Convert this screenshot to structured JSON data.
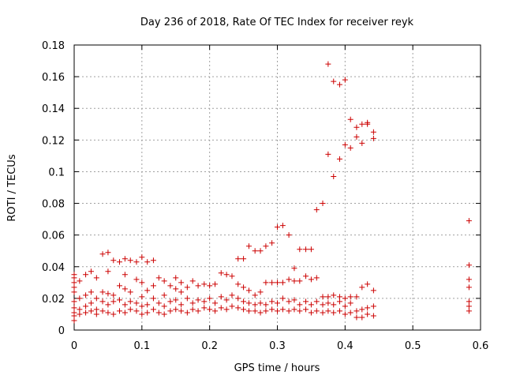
{
  "chart_data": {
    "type": "scatter",
    "title": "Day 236 of 2018, Rate Of TEC Index for receiver reyk",
    "xlabel": "GPS time / hours",
    "ylabel": "ROTI / TECUs",
    "xlim": [
      0,
      0.6
    ],
    "ylim": [
      0,
      0.18
    ],
    "grid": true,
    "marker": "+",
    "color": "#cc0000",
    "x_ticks": [
      {
        "value": 0,
        "label": "0"
      },
      {
        "value": 0.1,
        "label": "0.1"
      },
      {
        "value": 0.2,
        "label": "0.2"
      },
      {
        "value": 0.3,
        "label": "0.3"
      },
      {
        "value": 0.4,
        "label": "0.4"
      },
      {
        "value": 0.5,
        "label": "0.5"
      },
      {
        "value": 0.6,
        "label": "0.6"
      }
    ],
    "y_ticks": [
      {
        "value": 0,
        "label": "0"
      },
      {
        "value": 0.02,
        "label": "0.02"
      },
      {
        "value": 0.04,
        "label": "0.04"
      },
      {
        "value": 0.06,
        "label": "0.06"
      },
      {
        "value": 0.08,
        "label": "0.08"
      },
      {
        "value": 0.1,
        "label": "0.1"
      },
      {
        "value": 0.12,
        "label": "0.12"
      },
      {
        "value": 0.14,
        "label": "0.14"
      },
      {
        "value": 0.16,
        "label": "0.16"
      },
      {
        "value": 0.18,
        "label": "0.18"
      }
    ],
    "points": [
      [
        0.0,
        0.006
      ],
      [
        0.0,
        0.009
      ],
      [
        0.0,
        0.011
      ],
      [
        0.0,
        0.014
      ],
      [
        0.0,
        0.018
      ],
      [
        0.0,
        0.024
      ],
      [
        0.0,
        0.027
      ],
      [
        0.0,
        0.03
      ],
      [
        0.0,
        0.033
      ],
      [
        0.0,
        0.035
      ],
      [
        0.008,
        0.01
      ],
      [
        0.008,
        0.013
      ],
      [
        0.008,
        0.02
      ],
      [
        0.008,
        0.031
      ],
      [
        0.017,
        0.011
      ],
      [
        0.017,
        0.015
      ],
      [
        0.017,
        0.022
      ],
      [
        0.017,
        0.035
      ],
      [
        0.025,
        0.012
      ],
      [
        0.025,
        0.017
      ],
      [
        0.025,
        0.024
      ],
      [
        0.025,
        0.037
      ],
      [
        0.033,
        0.01
      ],
      [
        0.033,
        0.013
      ],
      [
        0.033,
        0.02
      ],
      [
        0.033,
        0.033
      ],
      [
        0.042,
        0.012
      ],
      [
        0.042,
        0.018
      ],
      [
        0.042,
        0.024
      ],
      [
        0.042,
        0.048
      ],
      [
        0.05,
        0.011
      ],
      [
        0.05,
        0.016
      ],
      [
        0.05,
        0.023
      ],
      [
        0.05,
        0.049
      ],
      [
        0.05,
        0.037
      ],
      [
        0.058,
        0.01
      ],
      [
        0.058,
        0.018
      ],
      [
        0.058,
        0.022
      ],
      [
        0.058,
        0.044
      ],
      [
        0.067,
        0.012
      ],
      [
        0.067,
        0.019
      ],
      [
        0.067,
        0.028
      ],
      [
        0.067,
        0.043
      ],
      [
        0.075,
        0.011
      ],
      [
        0.075,
        0.016
      ],
      [
        0.075,
        0.026
      ],
      [
        0.075,
        0.045
      ],
      [
        0.075,
        0.035
      ],
      [
        0.083,
        0.013
      ],
      [
        0.083,
        0.018
      ],
      [
        0.083,
        0.024
      ],
      [
        0.083,
        0.044
      ],
      [
        0.092,
        0.012
      ],
      [
        0.092,
        0.017
      ],
      [
        0.092,
        0.032
      ],
      [
        0.092,
        0.043
      ],
      [
        0.1,
        0.01
      ],
      [
        0.1,
        0.015
      ],
      [
        0.1,
        0.021
      ],
      [
        0.1,
        0.046
      ],
      [
        0.1,
        0.03
      ],
      [
        0.108,
        0.011
      ],
      [
        0.108,
        0.016
      ],
      [
        0.108,
        0.025
      ],
      [
        0.108,
        0.043
      ],
      [
        0.117,
        0.013
      ],
      [
        0.117,
        0.02
      ],
      [
        0.117,
        0.028
      ],
      [
        0.117,
        0.044
      ],
      [
        0.125,
        0.011
      ],
      [
        0.125,
        0.017
      ],
      [
        0.125,
        0.033
      ],
      [
        0.133,
        0.01
      ],
      [
        0.133,
        0.015
      ],
      [
        0.133,
        0.022
      ],
      [
        0.133,
        0.031
      ],
      [
        0.142,
        0.012
      ],
      [
        0.142,
        0.018
      ],
      [
        0.142,
        0.028
      ],
      [
        0.15,
        0.013
      ],
      [
        0.15,
        0.019
      ],
      [
        0.15,
        0.026
      ],
      [
        0.15,
        0.033
      ],
      [
        0.158,
        0.012
      ],
      [
        0.158,
        0.016
      ],
      [
        0.158,
        0.024
      ],
      [
        0.158,
        0.03
      ],
      [
        0.167,
        0.011
      ],
      [
        0.167,
        0.02
      ],
      [
        0.167,
        0.027
      ],
      [
        0.175,
        0.013
      ],
      [
        0.175,
        0.017
      ],
      [
        0.175,
        0.031
      ],
      [
        0.183,
        0.012
      ],
      [
        0.183,
        0.019
      ],
      [
        0.183,
        0.028
      ],
      [
        0.192,
        0.014
      ],
      [
        0.192,
        0.018
      ],
      [
        0.192,
        0.029
      ],
      [
        0.2,
        0.013
      ],
      [
        0.2,
        0.02
      ],
      [
        0.2,
        0.028
      ],
      [
        0.208,
        0.012
      ],
      [
        0.208,
        0.017
      ],
      [
        0.208,
        0.029
      ],
      [
        0.217,
        0.014
      ],
      [
        0.217,
        0.021
      ],
      [
        0.217,
        0.036
      ],
      [
        0.225,
        0.013
      ],
      [
        0.225,
        0.019
      ],
      [
        0.225,
        0.035
      ],
      [
        0.233,
        0.015
      ],
      [
        0.233,
        0.022
      ],
      [
        0.233,
        0.034
      ],
      [
        0.242,
        0.014
      ],
      [
        0.242,
        0.02
      ],
      [
        0.242,
        0.029
      ],
      [
        0.242,
        0.045
      ],
      [
        0.25,
        0.013
      ],
      [
        0.25,
        0.018
      ],
      [
        0.25,
        0.027
      ],
      [
        0.25,
        0.045
      ],
      [
        0.258,
        0.012
      ],
      [
        0.258,
        0.017
      ],
      [
        0.258,
        0.025
      ],
      [
        0.258,
        0.053
      ],
      [
        0.267,
        0.012
      ],
      [
        0.267,
        0.016
      ],
      [
        0.267,
        0.022
      ],
      [
        0.267,
        0.05
      ],
      [
        0.275,
        0.011
      ],
      [
        0.275,
        0.017
      ],
      [
        0.275,
        0.024
      ],
      [
        0.275,
        0.05
      ],
      [
        0.283,
        0.012
      ],
      [
        0.283,
        0.016
      ],
      [
        0.283,
        0.03
      ],
      [
        0.283,
        0.053
      ],
      [
        0.292,
        0.013
      ],
      [
        0.292,
        0.018
      ],
      [
        0.292,
        0.03
      ],
      [
        0.292,
        0.055
      ],
      [
        0.3,
        0.012
      ],
      [
        0.3,
        0.017
      ],
      [
        0.3,
        0.03
      ],
      [
        0.3,
        0.065
      ],
      [
        0.308,
        0.013
      ],
      [
        0.308,
        0.02
      ],
      [
        0.308,
        0.03
      ],
      [
        0.308,
        0.066
      ],
      [
        0.317,
        0.012
      ],
      [
        0.317,
        0.018
      ],
      [
        0.317,
        0.032
      ],
      [
        0.317,
        0.06
      ],
      [
        0.325,
        0.013
      ],
      [
        0.325,
        0.019
      ],
      [
        0.325,
        0.031
      ],
      [
        0.325,
        0.039
      ],
      [
        0.333,
        0.012
      ],
      [
        0.333,
        0.016
      ],
      [
        0.333,
        0.031
      ],
      [
        0.333,
        0.051
      ],
      [
        0.342,
        0.013
      ],
      [
        0.342,
        0.018
      ],
      [
        0.342,
        0.034
      ],
      [
        0.342,
        0.051
      ],
      [
        0.35,
        0.011
      ],
      [
        0.35,
        0.016
      ],
      [
        0.35,
        0.032
      ],
      [
        0.35,
        0.051
      ],
      [
        0.358,
        0.012
      ],
      [
        0.358,
        0.018
      ],
      [
        0.358,
        0.033
      ],
      [
        0.358,
        0.076
      ],
      [
        0.367,
        0.011
      ],
      [
        0.367,
        0.016
      ],
      [
        0.367,
        0.021
      ],
      [
        0.367,
        0.08
      ],
      [
        0.375,
        0.012
      ],
      [
        0.375,
        0.017
      ],
      [
        0.375,
        0.021
      ],
      [
        0.375,
        0.111
      ],
      [
        0.375,
        0.168
      ],
      [
        0.383,
        0.011
      ],
      [
        0.383,
        0.016
      ],
      [
        0.383,
        0.022
      ],
      [
        0.383,
        0.097
      ],
      [
        0.383,
        0.157
      ],
      [
        0.392,
        0.012
      ],
      [
        0.392,
        0.018
      ],
      [
        0.392,
        0.021
      ],
      [
        0.392,
        0.108
      ],
      [
        0.392,
        0.155
      ],
      [
        0.4,
        0.01
      ],
      [
        0.4,
        0.015
      ],
      [
        0.4,
        0.02
      ],
      [
        0.4,
        0.117
      ],
      [
        0.4,
        0.158
      ],
      [
        0.408,
        0.011
      ],
      [
        0.408,
        0.017
      ],
      [
        0.408,
        0.021
      ],
      [
        0.408,
        0.115
      ],
      [
        0.408,
        0.133
      ],
      [
        0.417,
        0.008
      ],
      [
        0.417,
        0.012
      ],
      [
        0.417,
        0.021
      ],
      [
        0.417,
        0.122
      ],
      [
        0.417,
        0.128
      ],
      [
        0.425,
        0.008
      ],
      [
        0.425,
        0.013
      ],
      [
        0.425,
        0.027
      ],
      [
        0.425,
        0.13
      ],
      [
        0.425,
        0.118
      ],
      [
        0.433,
        0.01
      ],
      [
        0.433,
        0.014
      ],
      [
        0.433,
        0.029
      ],
      [
        0.433,
        0.131
      ],
      [
        0.433,
        0.13
      ],
      [
        0.442,
        0.009
      ],
      [
        0.442,
        0.015
      ],
      [
        0.442,
        0.025
      ],
      [
        0.442,
        0.125
      ],
      [
        0.442,
        0.121
      ],
      [
        0.583,
        0.012
      ],
      [
        0.583,
        0.015
      ],
      [
        0.583,
        0.018
      ],
      [
        0.583,
        0.027
      ],
      [
        0.583,
        0.032
      ],
      [
        0.583,
        0.041
      ],
      [
        0.583,
        0.069
      ]
    ]
  }
}
